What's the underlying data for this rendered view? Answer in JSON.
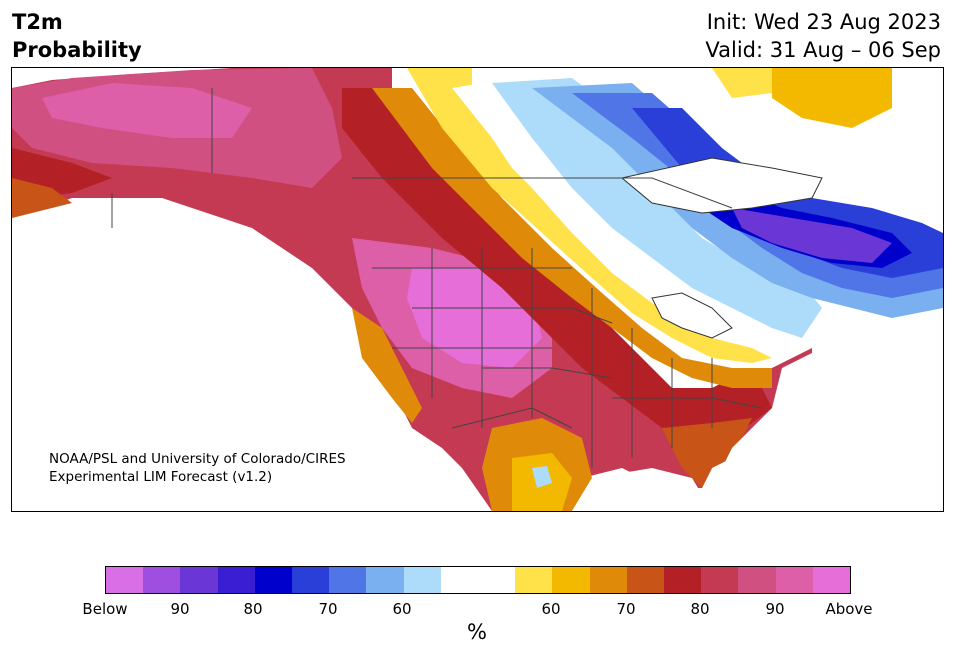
{
  "header": {
    "title_line1": "T2m",
    "title_line2": "Probability",
    "init": "Init: Wed 23 Aug 2023",
    "valid": "Valid: 31 Aug – 06 Sep"
  },
  "credit": {
    "line1": "NOAA/PSL and University of Colorado/CIRES",
    "line2": "Experimental LIM Forecast (v1.2)"
  },
  "colorbar": {
    "colors": [
      "#d86fe6",
      "#9e4fe0",
      "#6a36d6",
      "#3a1fd2",
      "#0000cc",
      "#2a3fd8",
      "#4f75e6",
      "#7aaff0",
      "#acdcfa",
      "#ffffff",
      "#ffffff",
      "#ffe14a",
      "#f2b900",
      "#e08a0a",
      "#c85417",
      "#b32025",
      "#c33a52",
      "#d05082",
      "#dd5fa8",
      "#e56ed8"
    ],
    "tick_labels": [
      "Below",
      "90",
      "80",
      "70",
      "60",
      "60",
      "70",
      "80",
      "90",
      "Above"
    ],
    "unit": "%"
  },
  "map": {
    "regions": [
      "North America"
    ]
  }
}
